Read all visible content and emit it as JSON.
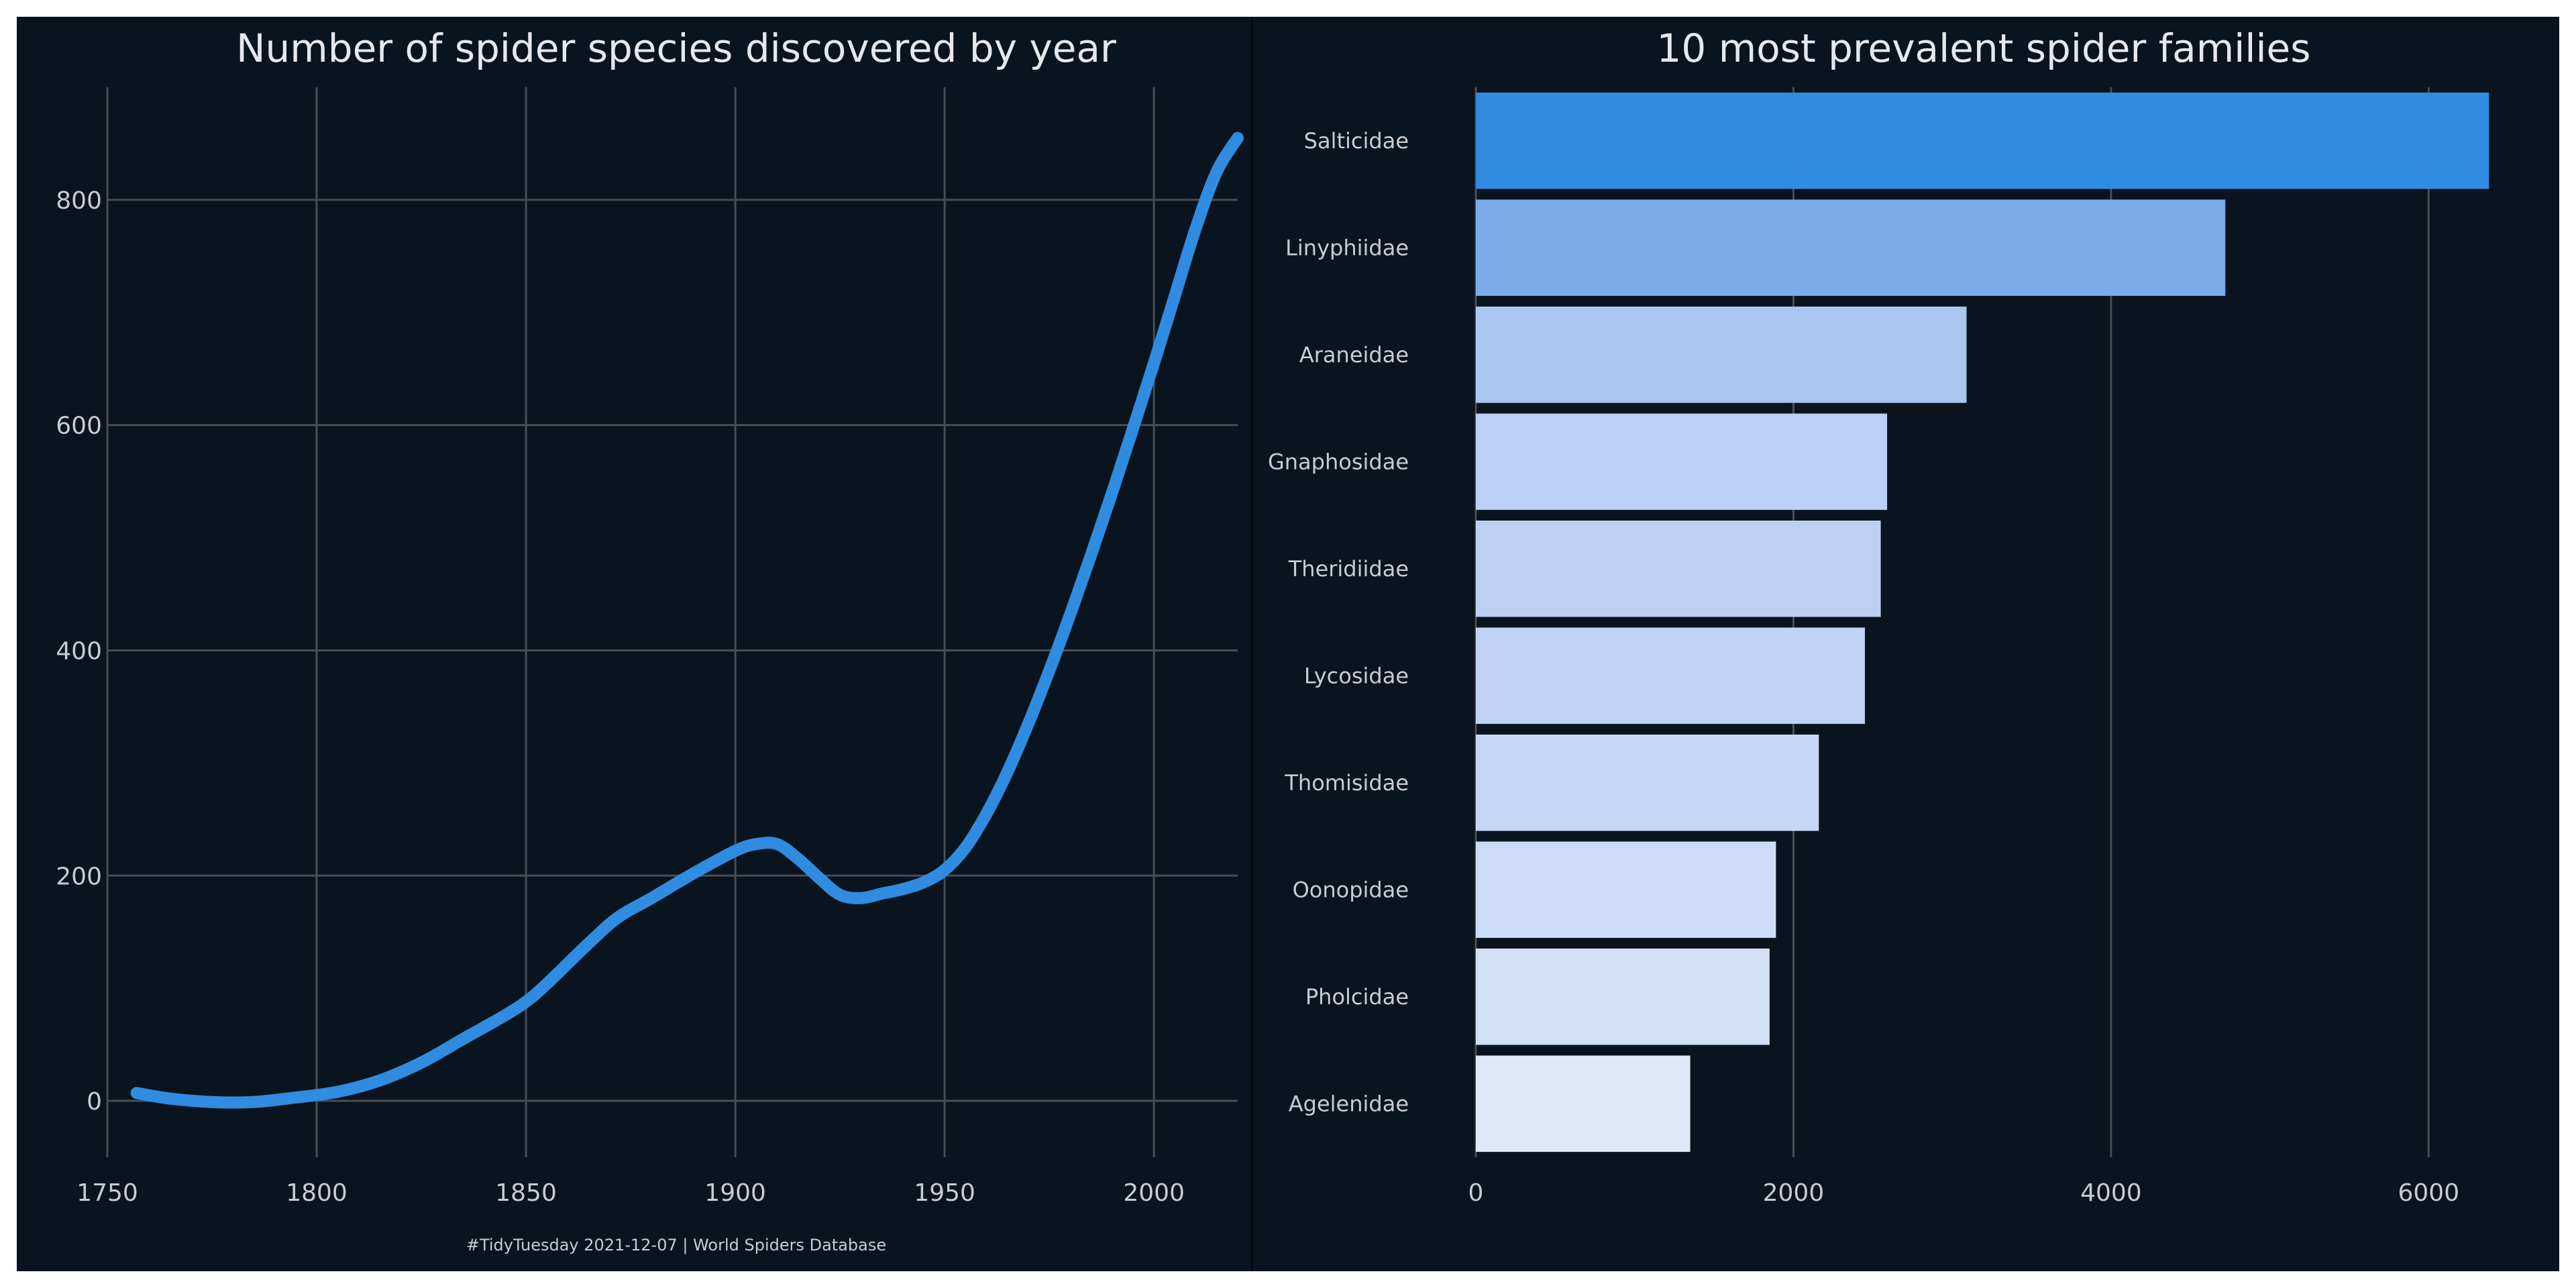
{
  "colors": {
    "background": "#0a141e",
    "grid": "#4a4d52",
    "text": "#c9ccd1",
    "title": "#e6e8ec",
    "line": "#2f8ce0"
  },
  "caption": "#TidyTuesday 2021-12-07 | World Spiders Database",
  "chart_data": [
    {
      "type": "line",
      "title": "Number of spider species discovered by year",
      "xlabel": "",
      "ylabel": "",
      "xlim": [
        1750,
        2020
      ],
      "ylim": [
        -50,
        900
      ],
      "xticks": [
        1750,
        1800,
        1850,
        1900,
        1950,
        2000
      ],
      "yticks": [
        0,
        200,
        400,
        600,
        800
      ],
      "grid": true,
      "series": [
        {
          "x": [
            1757,
            1765,
            1775,
            1785,
            1795,
            1805,
            1815,
            1825,
            1835,
            1845,
            1850,
            1855,
            1865,
            1872,
            1880,
            1890,
            1900,
            1905,
            1910,
            1915,
            1920,
            1925,
            1930,
            1935,
            1940,
            1945,
            1950,
            1955,
            1960,
            1965,
            1970,
            1975,
            1980,
            1985,
            1990,
            1995,
            2000,
            2005,
            2010,
            2015,
            2020
          ],
          "y": [
            7,
            2,
            -1,
            -1,
            3,
            8,
            18,
            34,
            55,
            76,
            88,
            104,
            140,
            163,
            180,
            202,
            222,
            228,
            228,
            215,
            198,
            183,
            180,
            184,
            188,
            194,
            205,
            225,
            255,
            292,
            335,
            382,
            432,
            485,
            540,
            597,
            655,
            715,
            775,
            825,
            855
          ]
        }
      ]
    },
    {
      "type": "bar",
      "orientation": "horizontal",
      "title": "10 most prevalent spider families",
      "xlabel": "",
      "ylabel": "",
      "xlim": [
        0,
        6400
      ],
      "xticks": [
        0,
        2000,
        4000,
        6000
      ],
      "grid": true,
      "categories": [
        "Salticidae",
        "Linyphiidae",
        "Araneidae",
        "Gnaphosidae",
        "Theridiidae",
        "Lycosidae",
        "Thomisidae",
        "Oonopidae",
        "Pholcidae",
        "Agelenidae"
      ],
      "values": [
        6380,
        4720,
        3090,
        2590,
        2550,
        2450,
        2160,
        1890,
        1850,
        1350
      ],
      "bar_colors": [
        "#2f8ce0",
        "#7aaaea",
        "#a9c5f0",
        "#bbd0f4",
        "#bdd0f4",
        "#c0d3f4",
        "#c6d7f5",
        "#cddcf6",
        "#d2e0f7",
        "#dde8f8"
      ]
    }
  ]
}
